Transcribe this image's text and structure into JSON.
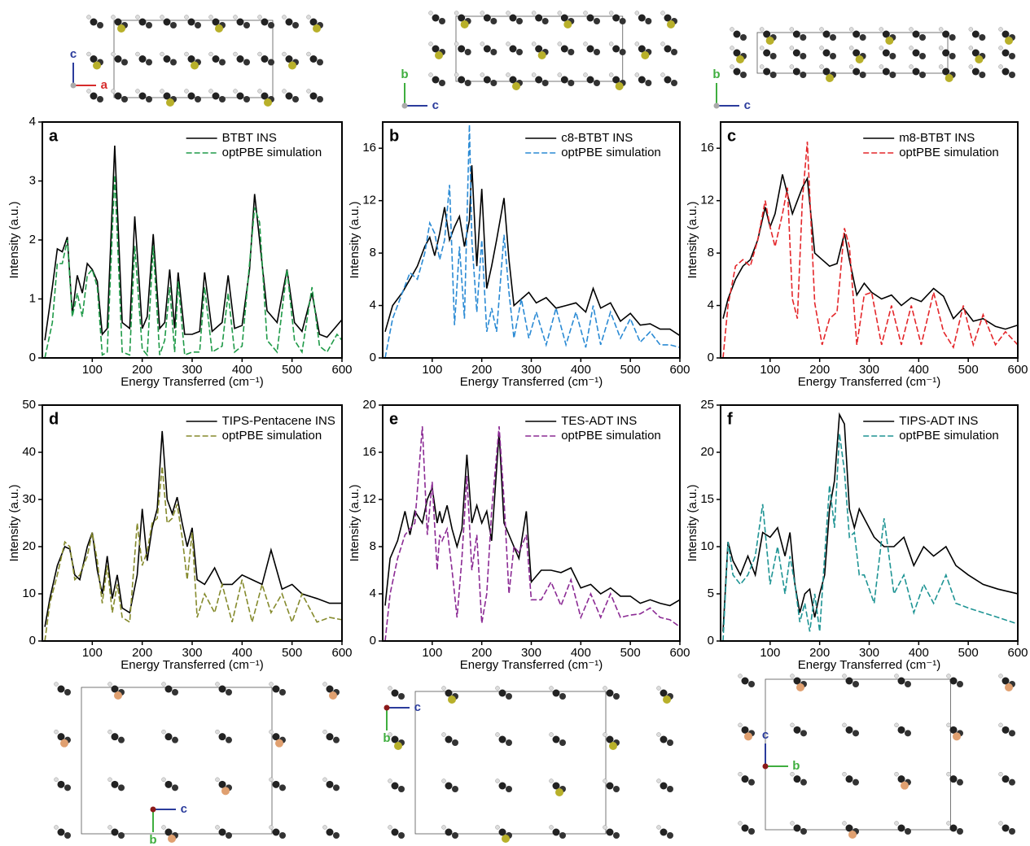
{
  "chart_data": [
    {
      "type": "line",
      "panel": "a",
      "ylabel": "Intensity (a.u.)",
      "xlabel": "Energy Transferred (cm⁻¹)",
      "xlim": [
        0,
        600
      ],
      "xticks": [
        100,
        200,
        300,
        400,
        500,
        600
      ],
      "ylim": [
        0,
        4
      ],
      "yticks": [
        0,
        1,
        2,
        3,
        4
      ],
      "x": [
        5,
        20,
        30,
        40,
        50,
        60,
        70,
        80,
        90,
        100,
        110,
        120,
        130,
        145,
        160,
        175,
        185,
        200,
        210,
        222,
        235,
        245,
        255,
        265,
        272,
        285,
        300,
        315,
        325,
        340,
        360,
        372,
        385,
        400,
        415,
        425,
        435,
        450,
        470,
        490,
        505,
        520,
        540,
        555,
        570,
        590,
        600
      ],
      "series": [
        {
          "name": "BTBT INS",
          "color": "#000000",
          "dash": false,
          "values": [
            0.3,
            1.2,
            1.85,
            1.8,
            2.05,
            0.75,
            1.4,
            1.1,
            1.6,
            1.5,
            1.3,
            0.4,
            0.5,
            3.6,
            0.6,
            0.5,
            2.4,
            0.5,
            0.7,
            2.1,
            0.5,
            0.6,
            1.5,
            0.5,
            1.45,
            0.4,
            0.4,
            0.45,
            1.45,
            0.45,
            0.6,
            1.4,
            0.5,
            0.55,
            1.5,
            2.78,
            2.0,
            0.8,
            0.6,
            1.5,
            0.6,
            0.45,
            1.1,
            0.4,
            0.35,
            0.55,
            0.65
          ]
        },
        {
          "name": "optPBE simulation",
          "color": "#1f9a48",
          "dash": true,
          "values": [
            0,
            0.6,
            1.6,
            1.6,
            2.0,
            0.7,
            1.1,
            0.7,
            1.4,
            1.5,
            1.2,
            0.05,
            0.1,
            3.1,
            0.1,
            0.05,
            1.9,
            0.15,
            0.05,
            1.9,
            0.05,
            0.3,
            1.2,
            0.1,
            1.3,
            0.05,
            0.1,
            0.1,
            1.2,
            0.1,
            0.2,
            1.1,
            0.1,
            0.2,
            1.6,
            2.55,
            2.3,
            0.3,
            0.1,
            1.5,
            0.3,
            0.1,
            1.2,
            0.2,
            0.1,
            0.4,
            0.3
          ]
        }
      ]
    },
    {
      "type": "line",
      "panel": "b",
      "ylabel": "Intensity (a.u.)",
      "xlabel": "Energy Transferred (cm⁻¹)",
      "xlim": [
        0,
        600
      ],
      "xticks": [
        100,
        200,
        300,
        400,
        500,
        600
      ],
      "ylim": [
        0,
        18
      ],
      "yticks": [
        0,
        4,
        8,
        12,
        16
      ],
      "x": [
        5,
        20,
        40,
        55,
        70,
        85,
        95,
        105,
        115,
        125,
        135,
        145,
        155,
        165,
        175,
        180,
        190,
        200,
        210,
        220,
        230,
        245,
        255,
        265,
        280,
        295,
        310,
        330,
        350,
        370,
        390,
        410,
        425,
        440,
        460,
        480,
        500,
        520,
        540,
        560,
        580,
        600
      ],
      "series": [
        {
          "name": "c8-BTBT INS",
          "color": "#000000",
          "dash": false,
          "values": [
            2,
            4,
            5,
            6,
            7,
            8.5,
            9.2,
            7.8,
            9.5,
            11.5,
            9,
            10,
            10.8,
            8.5,
            10.5,
            14.7,
            7,
            12.9,
            5.3,
            7,
            9,
            12.2,
            7.5,
            4,
            4.5,
            5,
            4.2,
            4.6,
            3.8,
            4,
            4.2,
            3.5,
            5.3,
            3.8,
            4.2,
            2.8,
            3.4,
            2.5,
            2.6,
            2.2,
            2.2,
            1.7
          ]
        },
        {
          "name": "optPBE simulation",
          "color": "#2a8ad4",
          "dash": true,
          "values": [
            0,
            3,
            5,
            6.5,
            6,
            8,
            10.3,
            9.5,
            7.5,
            9,
            13.2,
            2.5,
            8.5,
            3,
            17.8,
            9,
            3.5,
            9,
            2,
            3.8,
            2,
            9.4,
            5,
            1.5,
            4.5,
            1.5,
            3.5,
            1,
            3.8,
            1,
            3.5,
            0.8,
            4,
            1,
            3.5,
            1.5,
            3,
            1.2,
            2,
            1,
            1,
            0.8
          ]
        }
      ]
    },
    {
      "type": "line",
      "panel": "c",
      "ylabel": "Intensity (a.u.)",
      "xlabel": "Energy Transferred (cm⁻¹)",
      "xlim": [
        0,
        600
      ],
      "xticks": [
        100,
        200,
        300,
        400,
        500,
        600
      ],
      "ylim": [
        0,
        18
      ],
      "yticks": [
        0,
        4,
        8,
        12,
        16
      ],
      "x": [
        5,
        15,
        30,
        45,
        60,
        75,
        90,
        100,
        110,
        125,
        135,
        145,
        155,
        165,
        175,
        190,
        205,
        220,
        235,
        250,
        260,
        275,
        290,
        305,
        325,
        345,
        365,
        385,
        405,
        430,
        450,
        470,
        490,
        510,
        530,
        555,
        575,
        600
      ],
      "series": [
        {
          "name": "m8-BTBT INS",
          "color": "#000000",
          "dash": false,
          "values": [
            3,
            4.5,
            6,
            7,
            7.5,
            9,
            11.5,
            10,
            11,
            14,
            12.5,
            11,
            12,
            13,
            13.7,
            8,
            7.5,
            7,
            7.2,
            9.5,
            7.5,
            4.8,
            5.7,
            5,
            4.5,
            4.8,
            4,
            4.6,
            4.3,
            5.3,
            4.7,
            3,
            3.8,
            2.8,
            3,
            2.4,
            2.2,
            2.5
          ]
        },
        {
          "name": "optPBE simulation",
          "color": "#e4262a",
          "dash": true,
          "values": [
            0,
            4,
            7,
            7.5,
            7,
            9,
            12,
            10,
            8.5,
            11,
            13,
            4.5,
            3,
            12,
            16.5,
            4.2,
            1,
            3,
            3.5,
            9.9,
            8.5,
            1,
            4.8,
            5,
            1,
            4,
            1,
            4,
            1,
            5,
            2,
            0.8,
            4,
            1,
            3.3,
            1,
            2,
            1
          ]
        }
      ]
    },
    {
      "type": "line",
      "panel": "d",
      "ylabel": "Intensity (a.u.)",
      "xlabel": "Energy Transferred (cm⁻¹)",
      "xlim": [
        0,
        600
      ],
      "xticks": [
        100,
        200,
        300,
        400,
        500,
        600
      ],
      "ylim": [
        0,
        50
      ],
      "yticks": [
        0,
        10,
        20,
        30,
        40,
        50
      ],
      "x": [
        5,
        15,
        30,
        45,
        55,
        65,
        75,
        90,
        100,
        110,
        120,
        130,
        140,
        150,
        160,
        175,
        190,
        200,
        210,
        220,
        230,
        240,
        250,
        260,
        270,
        280,
        290,
        300,
        310,
        325,
        345,
        360,
        380,
        400,
        420,
        440,
        458,
        480,
        500,
        520,
        550,
        575,
        600
      ],
      "series": [
        {
          "name": "TIPS-Pentacene INS",
          "color": "#000000",
          "dash": false,
          "values": [
            3,
            9,
            16,
            20,
            19.5,
            14,
            13,
            20,
            23,
            15,
            10,
            18,
            9,
            14,
            7,
            6,
            14,
            28,
            17,
            24,
            28,
            44.5,
            30,
            27,
            30.5,
            25,
            20,
            24,
            13,
            12,
            15.5,
            12,
            12,
            14,
            13,
            12,
            19.3,
            11,
            12,
            10,
            9,
            8,
            8
          ]
        },
        {
          "name": "optPBE simulation",
          "color": "#858a2c",
          "dash": true,
          "values": [
            0,
            8,
            14,
            21,
            20,
            13,
            14,
            18,
            23,
            17,
            8,
            16,
            6,
            12,
            5,
            4,
            25,
            16,
            19,
            25,
            26,
            37,
            25,
            26,
            29,
            22,
            13,
            23,
            5,
            10,
            6,
            12,
            4,
            13,
            4,
            12,
            6,
            10,
            4,
            10,
            4,
            5,
            4.5
          ]
        }
      ]
    },
    {
      "type": "line",
      "panel": "e",
      "ylabel": "Intensity (a.u.)",
      "xlabel": "Energy Transferred (cm⁻¹)",
      "xlim": [
        0,
        600
      ],
      "xticks": [
        100,
        200,
        300,
        400,
        500,
        600
      ],
      "ylim": [
        0,
        20
      ],
      "yticks": [
        0,
        4,
        8,
        12,
        16,
        20
      ],
      "x": [
        5,
        15,
        30,
        45,
        55,
        65,
        80,
        90,
        100,
        110,
        115,
        120,
        130,
        140,
        150,
        160,
        170,
        180,
        190,
        200,
        210,
        220,
        235,
        245,
        255,
        265,
        275,
        290,
        300,
        320,
        340,
        360,
        380,
        400,
        420,
        440,
        460,
        480,
        500,
        520,
        540,
        560,
        580,
        600
      ],
      "series": [
        {
          "name": "TES-ADT INS",
          "color": "#000000",
          "dash": false,
          "values": [
            3,
            7,
            8.5,
            11,
            9,
            11,
            10,
            12,
            13,
            10,
            11,
            10,
            11.5,
            9.5,
            8,
            9.5,
            15.8,
            10,
            11.5,
            10,
            11,
            8.5,
            17.7,
            10,
            9,
            8,
            7,
            11,
            5,
            6,
            6,
            5.8,
            6.2,
            4.5,
            4.8,
            4,
            4.5,
            3.8,
            3.8,
            3.2,
            3.5,
            3.2,
            3,
            3.5
          ]
        },
        {
          "name": "optPBE simulation",
          "color": "#8b2a94",
          "dash": true,
          "values": [
            0,
            4,
            7,
            9,
            9.5,
            10,
            18.2,
            9,
            13.5,
            6,
            9,
            8.5,
            9.5,
            6,
            2,
            7,
            14,
            6,
            9,
            1.5,
            4,
            11,
            18.2,
            12,
            4,
            8,
            7.5,
            9,
            3.5,
            3.5,
            5,
            3,
            5.2,
            2,
            4,
            2,
            4,
            2,
            2.2,
            2.3,
            2.8,
            2,
            1.8,
            1.2
          ]
        }
      ]
    },
    {
      "type": "line",
      "panel": "f",
      "ylabel": "Intensity (a.u.)",
      "xlabel": "Energy Transferred (cm⁻¹)",
      "xlim": [
        0,
        600
      ],
      "xticks": [
        100,
        200,
        300,
        400,
        500,
        600
      ],
      "ylim": [
        0,
        25
      ],
      "yticks": [
        0,
        5,
        10,
        15,
        20,
        25
      ],
      "x": [
        5,
        15,
        25,
        40,
        55,
        70,
        85,
        100,
        115,
        130,
        140,
        150,
        160,
        170,
        180,
        190,
        200,
        210,
        220,
        230,
        240,
        250,
        260,
        270,
        280,
        290,
        310,
        330,
        350,
        370,
        390,
        410,
        430,
        455,
        475,
        500,
        530,
        560,
        600
      ],
      "series": [
        {
          "name": "TIPS-ADT INS",
          "color": "#000000",
          "dash": false,
          "values": [
            1,
            10.5,
            8.5,
            7,
            9,
            7,
            11.5,
            11,
            12,
            9,
            11.5,
            6,
            3,
            5,
            5.5,
            2.5,
            5,
            7,
            14,
            17,
            24,
            23,
            14,
            12,
            14,
            13,
            11,
            10,
            10,
            11,
            8,
            10,
            9,
            10,
            8,
            7,
            6,
            5.5,
            5
          ]
        },
        {
          "name": "optPBE simulation",
          "color": "#1e9494",
          "dash": true,
          "values": [
            0,
            10.5,
            7,
            6,
            7,
            9,
            14.5,
            6,
            10,
            5,
            9,
            6,
            2,
            4,
            1,
            5,
            1,
            9,
            16.5,
            12,
            22,
            18,
            11,
            11.5,
            7,
            7,
            4,
            13,
            5,
            7,
            3,
            6,
            4,
            7,
            4,
            3.5,
            3,
            2.5,
            1.8
          ]
        }
      ]
    }
  ],
  "structures": [
    [
      "c",
      "a"
    ],
    [
      "b",
      "c"
    ],
    [
      "b",
      "c"
    ],
    [
      "c",
      "b"
    ],
    [
      "c",
      "b"
    ],
    [
      "c",
      "b"
    ]
  ]
}
